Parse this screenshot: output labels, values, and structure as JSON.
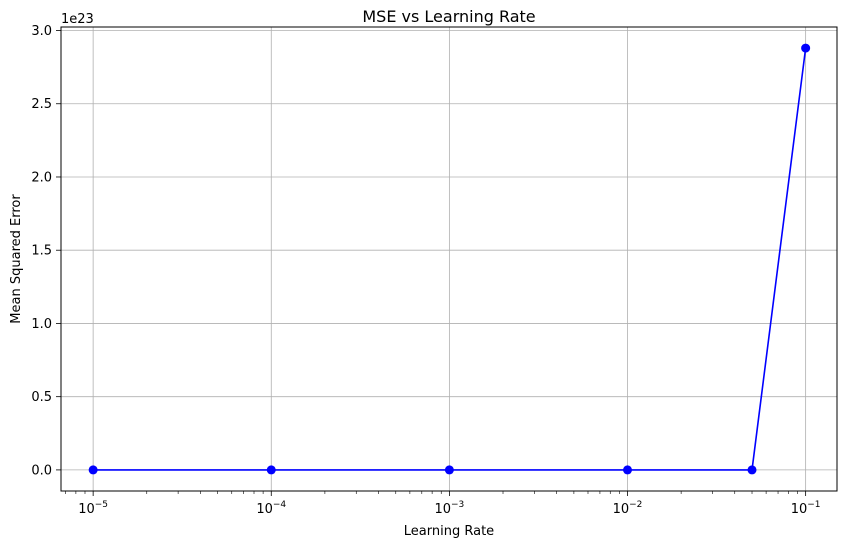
{
  "chart_data": {
    "type": "line",
    "title": "MSE vs Learning Rate",
    "xlabel": "Learning Rate",
    "ylabel": "Mean Squared Error",
    "x_scale": "log",
    "y_offset_label": "1e23",
    "x_ticks": [
      {
        "value": 1e-05,
        "base": "10",
        "exp": "−5"
      },
      {
        "value": 0.0001,
        "base": "10",
        "exp": "−4"
      },
      {
        "value": 0.001,
        "base": "10",
        "exp": "−3"
      },
      {
        "value": 0.01,
        "base": "10",
        "exp": "−2"
      },
      {
        "value": 0.1,
        "base": "10",
        "exp": "−1"
      }
    ],
    "y_ticks": [
      {
        "value": 0.0,
        "label": "0.0"
      },
      {
        "value": 0.5,
        "label": "0.5"
      },
      {
        "value": 1.0,
        "label": "1.0"
      },
      {
        "value": 1.5,
        "label": "1.5"
      },
      {
        "value": 2.0,
        "label": "2.0"
      },
      {
        "value": 2.5,
        "label": "2.5"
      },
      {
        "value": 3.0,
        "label": "3.0"
      }
    ],
    "xlim": [
      6.6e-06,
      0.15
    ],
    "ylim": [
      -0.144,
      3.024
    ],
    "grid": true,
    "series": [
      {
        "color": "#0000ff",
        "marker": "circle",
        "x": [
          1e-05,
          0.0001,
          0.001,
          0.01,
          0.05,
          0.1
        ],
        "y": [
          0.0,
          0.0,
          0.0,
          0.0,
          0.0,
          2.88
        ]
      }
    ]
  }
}
